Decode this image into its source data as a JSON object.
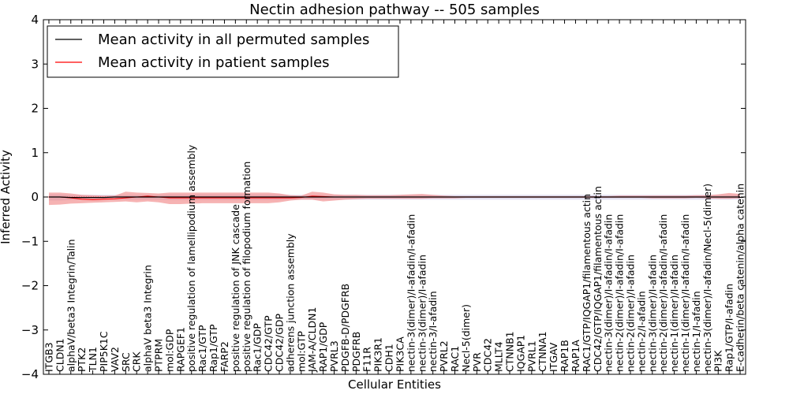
{
  "chart_data": {
    "type": "line",
    "title": "Nectin adhesion pathway -- 505 samples",
    "xlabel": "Cellular Entities",
    "ylabel": "Inferred Activity",
    "ylim": [
      -4,
      4
    ],
    "yticks": [
      -4,
      -3,
      -2,
      -1,
      0,
      1,
      2,
      3,
      4
    ],
    "ytick_labels": [
      "−4",
      "−3",
      "−2",
      "−1",
      "0",
      "1",
      "2",
      "3",
      "4"
    ],
    "grid": false,
    "legend": {
      "placement": "top-left",
      "entries": [
        {
          "label": "Mean activity in all permuted samples",
          "color": "#000000"
        },
        {
          "label": "Mean activity in patient samples",
          "color": "#ff0000"
        }
      ]
    },
    "categories": [
      "ITGB3",
      "CLDN1",
      "alphaV/beta3 Integrin/Talin",
      "PTK2",
      "TLN1",
      "PIP5K1C",
      "VAV2",
      "SRC",
      "CRK",
      "alphaV beta3 Integrin",
      "PTPRM",
      "mol:GDP",
      "RAPGEF1",
      "positive regulation of lamellipodium assembly",
      "Rac1/GTP",
      "Rap1/GTP",
      "FARP2",
      "positive regulation of JNK cascade",
      "positive regulation of filopodium formation",
      "Rac1/GDP",
      "CDC42/GTP",
      "CDC42/GDP",
      "adherens junction assembly",
      "mol:GTP",
      "JAM-A/CLDN1",
      "RAP1/GDP",
      "PVRL3",
      "PDGFB-D/PDGFRB",
      "PDGFRB",
      "F11R",
      "PIK3R1",
      "CDH1",
      "PIK3CA",
      "nectin-3(dimer)/I-afadin/I-afadin",
      "nectin-3(dimer)/I-afadin",
      "nectin-3/I-afadin",
      "PVRL2",
      "RAC1",
      "Necl-5(dimer)",
      "PVR",
      "CDC42",
      "MLLT4",
      "CTNNB1",
      "IQGAP1",
      "PVRL1",
      "CTNNA1",
      "ITGAV",
      "RAP1B",
      "RAP1A",
      "RAC1/GTP/IQGAP1/filamentous actin",
      "CDC42/GTP/IQGAP1/filamentous actin",
      "nectin-3(dimer)/I-afadin/I-afadin",
      "nectin-2(dimer)/I-afadin/I-afadin",
      "nectin-2(dimer)/I-afadin",
      "nectin-2/I-afadin",
      "nectin-3(dimer)/I-afadin",
      "nectin-2(dimer)/I-afadin/I-afadin",
      "nectin-1(dimer)/I-afadin",
      "nectin-1(dimer)/I-afadin/I-afadin",
      "nectin-1/I-afadin",
      "nectin-3(dimer)/I-afadin/Necl-5(dimer)",
      "PI3K",
      "Rap1/GTP/I-afadin",
      "E-cadherin/beta catenin/alpha catenin"
    ],
    "series": [
      {
        "name": "Mean activity in patient samples",
        "color": "#ff0000",
        "values": [
          0.0,
          0.0,
          -0.02,
          -0.05,
          -0.06,
          -0.05,
          -0.04,
          -0.02,
          0.0,
          0.02,
          0.0,
          -0.02,
          -0.02,
          -0.02,
          -0.02,
          -0.02,
          -0.02,
          -0.02,
          -0.02,
          -0.02,
          -0.02,
          -0.02,
          -0.02,
          -0.01,
          0.02,
          0.01,
          0.0,
          0.0,
          0.0,
          0.0,
          0.0,
          0.0,
          0.0,
          0.0,
          0.0,
          0.0,
          0.0,
          0.0,
          0.0,
          0.0,
          0.0,
          0.0,
          0.0,
          0.0,
          0.0,
          0.0,
          0.0,
          0.0,
          0.0,
          0.0,
          0.0,
          0.0,
          0.0,
          0.0,
          0.0,
          0.0,
          0.0,
          0.0,
          0.0,
          0.0,
          0.0,
          0.0,
          0.0,
          0.0
        ],
        "lower": [
          -0.18,
          -0.17,
          -0.15,
          -0.14,
          -0.13,
          -0.12,
          -0.11,
          -0.1,
          -0.12,
          -0.1,
          -0.12,
          -0.16,
          -0.16,
          -0.15,
          -0.14,
          -0.14,
          -0.14,
          -0.14,
          -0.14,
          -0.14,
          -0.14,
          -0.12,
          -0.08,
          -0.06,
          -0.06,
          -0.1,
          -0.08,
          -0.06,
          -0.05,
          -0.04,
          -0.04,
          -0.04,
          -0.04,
          -0.04,
          -0.04,
          -0.03,
          -0.03,
          -0.03,
          -0.02,
          -0.02,
          -0.02,
          -0.02,
          -0.02,
          -0.02,
          -0.02,
          -0.02,
          -0.02,
          -0.02,
          -0.02,
          -0.02,
          -0.02,
          -0.02,
          -0.02,
          -0.02,
          -0.02,
          -0.03,
          -0.03,
          -0.03,
          -0.03,
          -0.02,
          -0.03,
          -0.04,
          -0.04,
          -0.03
        ],
        "upper": [
          0.1,
          0.1,
          0.08,
          0.05,
          0.04,
          0.03,
          0.03,
          0.12,
          0.1,
          0.09,
          0.08,
          0.1,
          0.1,
          0.1,
          0.1,
          0.1,
          0.1,
          0.1,
          0.1,
          0.1,
          0.1,
          0.08,
          0.04,
          0.03,
          0.12,
          0.1,
          0.06,
          0.05,
          0.05,
          0.04,
          0.04,
          0.04,
          0.05,
          0.06,
          0.07,
          0.05,
          0.03,
          0.02,
          0.02,
          0.02,
          0.02,
          0.02,
          0.02,
          0.02,
          0.02,
          0.02,
          0.02,
          0.02,
          0.02,
          0.02,
          0.02,
          0.02,
          0.03,
          0.03,
          0.03,
          0.03,
          0.03,
          0.03,
          0.03,
          0.04,
          0.04,
          0.06,
          0.09,
          0.07
        ]
      },
      {
        "name": "Mean activity in all permuted samples",
        "color": "#000000",
        "values": [
          0.0,
          0.0,
          -0.01,
          -0.01,
          -0.01,
          -0.01,
          0.0,
          0.0,
          0.0,
          0.0,
          0.0,
          0.0,
          0.0,
          0.0,
          0.0,
          0.0,
          0.0,
          0.0,
          0.0,
          0.0,
          0.0,
          0.0,
          0.0,
          0.0,
          0.0,
          0.0,
          0.0,
          0.0,
          0.0,
          0.0,
          0.0,
          0.0,
          0.0,
          0.0,
          0.0,
          0.0,
          0.0,
          0.0,
          0.0,
          0.0,
          0.0,
          0.0,
          0.0,
          0.0,
          0.0,
          0.0,
          0.0,
          0.0,
          0.0,
          0.0,
          0.0,
          0.0,
          0.0,
          0.0,
          0.0,
          0.0,
          0.0,
          0.0,
          0.0,
          0.0,
          0.0,
          0.0,
          0.0,
          0.0
        ],
        "lower": [
          -0.08,
          -0.08,
          -0.07,
          -0.06,
          -0.06,
          -0.06,
          -0.06,
          -0.06,
          -0.06,
          -0.06,
          -0.06,
          -0.07,
          -0.07,
          -0.07,
          -0.07,
          -0.07,
          -0.07,
          -0.07,
          -0.07,
          -0.07,
          -0.07,
          -0.07,
          -0.06,
          -0.06,
          -0.06,
          -0.06,
          -0.06,
          -0.06,
          -0.06,
          -0.06,
          -0.06,
          -0.06,
          -0.06,
          -0.06,
          -0.06,
          -0.06,
          -0.06,
          -0.06,
          -0.06,
          -0.06,
          -0.06,
          -0.06,
          -0.06,
          -0.06,
          -0.06,
          -0.06,
          -0.06,
          -0.06,
          -0.06,
          -0.06,
          -0.06,
          -0.06,
          -0.06,
          -0.06,
          -0.06,
          -0.06,
          -0.06,
          -0.06,
          -0.06,
          -0.06,
          -0.06,
          -0.06,
          -0.06,
          -0.06
        ],
        "upper": [
          0.06,
          0.06,
          0.05,
          0.05,
          0.05,
          0.05,
          0.05,
          0.05,
          0.05,
          0.05,
          0.05,
          0.06,
          0.06,
          0.06,
          0.06,
          0.06,
          0.06,
          0.06,
          0.06,
          0.06,
          0.06,
          0.06,
          0.05,
          0.05,
          0.05,
          0.05,
          0.05,
          0.05,
          0.05,
          0.05,
          0.05,
          0.05,
          0.05,
          0.05,
          0.05,
          0.05,
          0.05,
          0.05,
          0.05,
          0.05,
          0.05,
          0.05,
          0.05,
          0.05,
          0.05,
          0.05,
          0.05,
          0.05,
          0.05,
          0.05,
          0.05,
          0.05,
          0.05,
          0.05,
          0.05,
          0.05,
          0.05,
          0.05,
          0.05,
          0.05,
          0.05,
          0.05,
          0.05,
          0.05
        ]
      }
    ],
    "colors": {
      "patient_line": "#ff0000",
      "patient_band": "#f08080",
      "permuted_line": "#000000",
      "permuted_band": "#c8c8e8",
      "zero_line": "#ff0000"
    }
  }
}
